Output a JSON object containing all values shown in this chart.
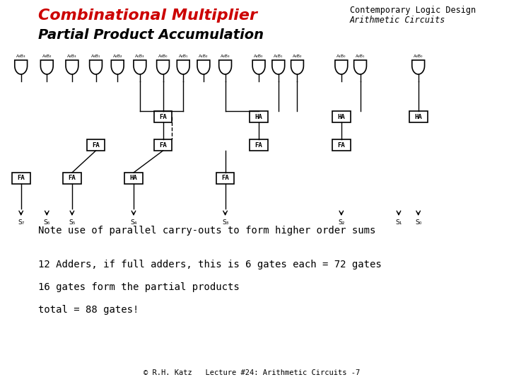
{
  "title1": "Combinational Multiplier",
  "title2": "Partial Product Accumulation",
  "top_right1": "Contemporary Logic Design",
  "top_right2": "Arithmetic Circuits",
  "note1": "Note use of parallel carry-outs to form higher order sums",
  "note2": "12 Adders, if full adders, this is 6 gates each = 72 gates",
  "note3": "16 gates form the partial products",
  "note4": "total = 88 gates!",
  "footer": "© R.H. Katz   Lecture #24: Arithmetic Circuits -7",
  "bg_color": "#ffffff",
  "title1_color": "#cc0000",
  "title2_color": "#000000",
  "text_color": "#000000",
  "and_gate_labels": [
    "A₃ B₃",
    "A₃ B₂",
    "A₂ B₃",
    "A₃ B₁",
    "A₂ B₂",
    "A₁ B₃",
    "A₃ B₀",
    "A₂ B₁",
    "A₁ B₂",
    "A₀ B₃",
    "A₂ B₀",
    "A₁ B₁",
    "A₀ B₂",
    "A₁ B₀",
    "A₀ B₁",
    "A₀ B₀"
  ],
  "sum_labels": [
    "S₇",
    "S₆",
    "S₅",
    "S₄",
    "S₃",
    "S₂",
    "S₁",
    "S₀"
  ]
}
